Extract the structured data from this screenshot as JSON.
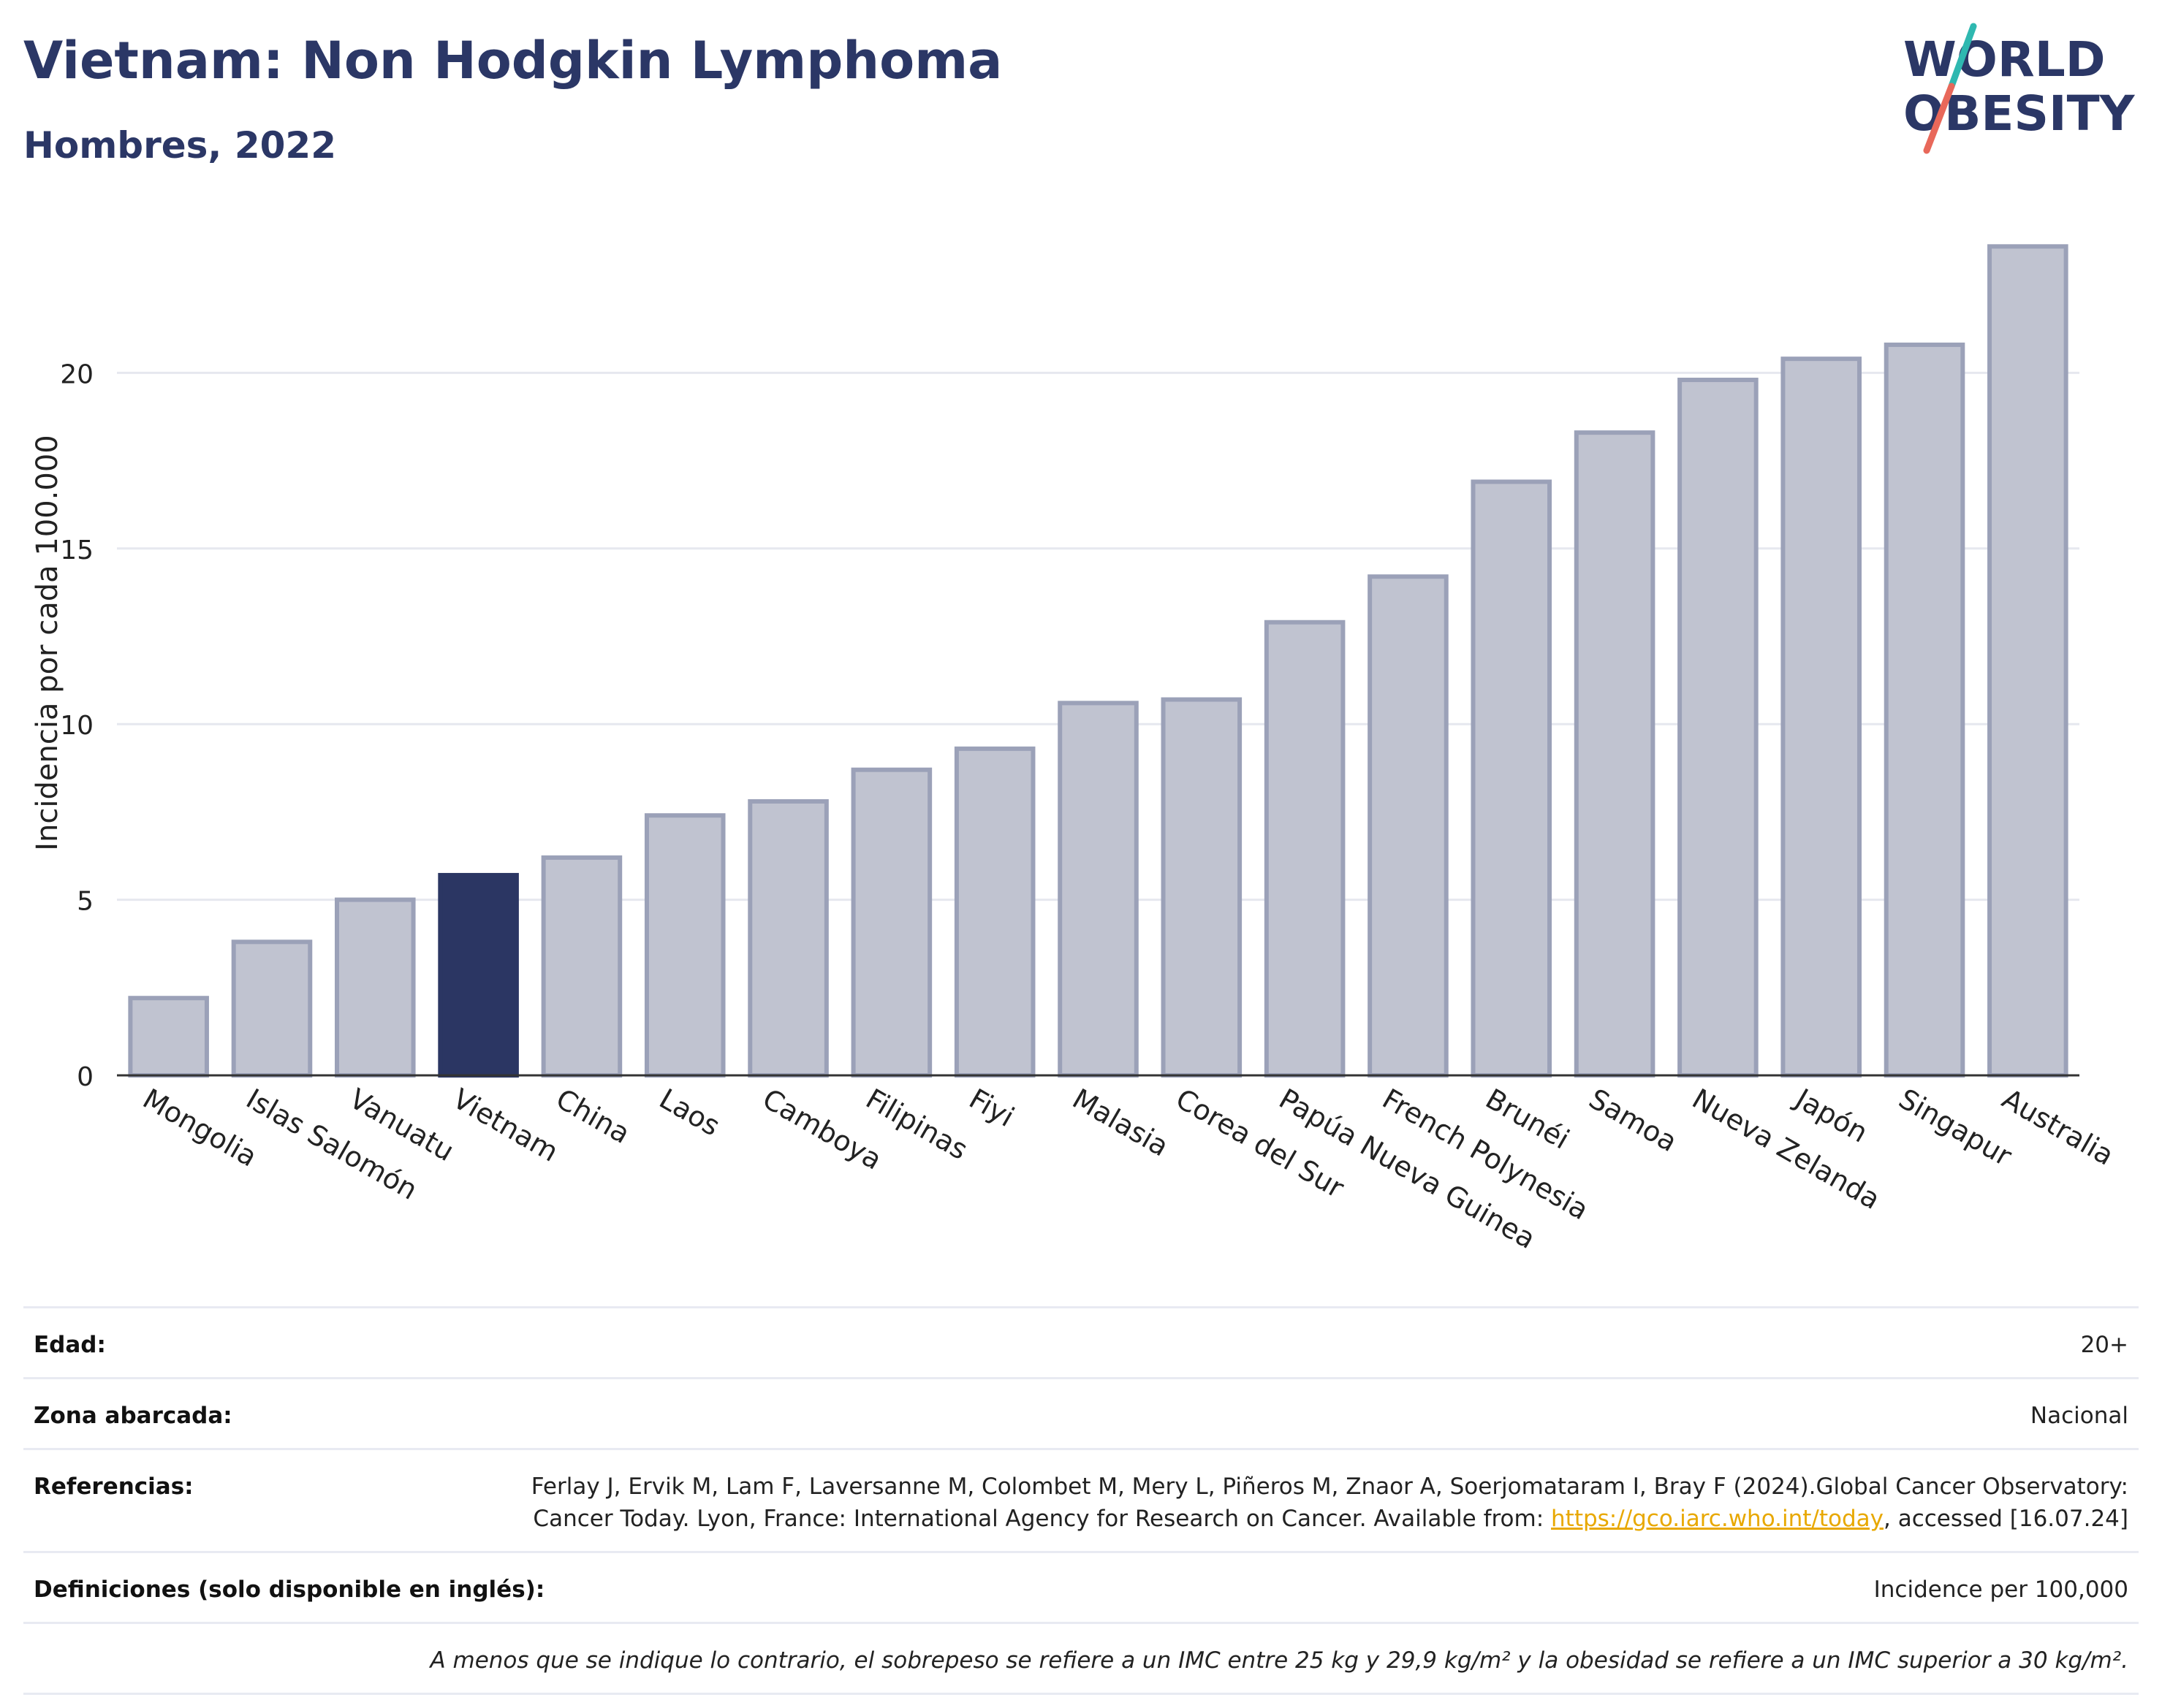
{
  "header": {
    "title": "Vietnam: Non Hodgkin Lymphoma",
    "subtitle": "Hombres, 2022",
    "logo_line1": "WORLD",
    "logo_line2": "OBESITY"
  },
  "chart_data": {
    "type": "bar",
    "categories": [
      "Mongolia",
      "Islas Salomón",
      "Vanuatu",
      "Vietnam",
      "China",
      "Laos",
      "Camboya",
      "Filipinas",
      "Fiyi",
      "Malasia",
      "Corea del Sur",
      "Papúa Nueva Guinea",
      "French Polynesia",
      "Brunéi",
      "Samoa",
      "Nueva Zelanda",
      "Japón",
      "Singapur",
      "Australia"
    ],
    "values": [
      2.2,
      3.8,
      5.0,
      5.7,
      6.2,
      7.4,
      7.8,
      8.7,
      9.3,
      10.6,
      10.7,
      12.9,
      14.2,
      16.9,
      18.3,
      19.8,
      20.4,
      20.8,
      23.6
    ],
    "highlight": "Vietnam",
    "ylabel": "Incidencia por cada 100.000",
    "xlabel": "",
    "ylim": [
      0,
      25
    ],
    "yticks": [
      0,
      5,
      10,
      15,
      20
    ],
    "grid": true,
    "colors": {
      "bar": "#c0c3d0",
      "bar_edge": "#9ba1b8",
      "highlight": "#2b3663",
      "grid": "#e6e8ef",
      "axis": "#333333"
    }
  },
  "info_table": {
    "rows": [
      {
        "label": "Edad:",
        "value": "20+"
      },
      {
        "label": "Zona abarcada:",
        "value": "Nacional"
      },
      {
        "label": "Referencias:",
        "value_pre": "Ferlay J, Ervik M, Lam F, Laversanne M, Colombet M, Mery L, Piñeros M, Znaor A, Soerjomataram I, Bray F (2024).Global Cancer Observatory: Cancer Today. Lyon, France: International Agency for Research on Cancer. Available from: ",
        "link": "https://gco.iarc.who.int/today",
        "value_post": ", accessed [16.07.24]"
      },
      {
        "label": "Definiciones (solo disponible en inglés):",
        "value": "Incidence per 100,000"
      }
    ],
    "footnote": "A menos que se indique lo contrario, el sobrepeso se refiere a un IMC entre 25 kg y 29,9 kg/m² y la obesidad se refiere a un IMC superior a 30 kg/m²."
  }
}
